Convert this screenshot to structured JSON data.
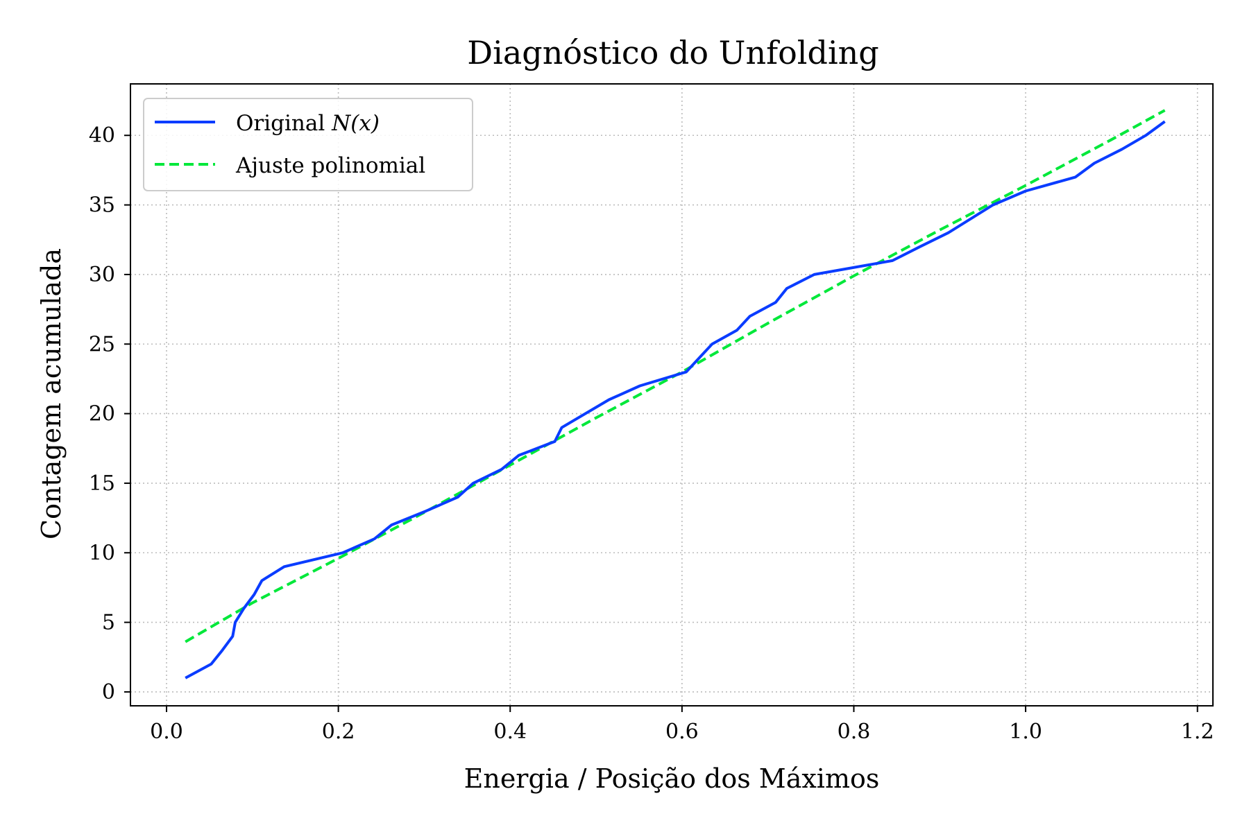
{
  "chart_data": {
    "type": "line",
    "title": "Diagnóstico do Unfolding",
    "xlabel": "Energia / Posição dos Máximos",
    "ylabel": "Contagem acumulada",
    "xlim": [
      -0.042,
      1.218
    ],
    "ylim": [
      -1.0,
      43.7
    ],
    "xticks": [
      "0.0",
      "0.2",
      "0.4",
      "0.6",
      "0.8",
      "1.0",
      "1.2"
    ],
    "xtick_values": [
      0.0,
      0.2,
      0.4,
      0.6,
      0.8,
      1.0,
      1.2
    ],
    "yticks": [
      "0",
      "5",
      "10",
      "15",
      "20",
      "25",
      "30",
      "35",
      "40"
    ],
    "ytick_values": [
      0,
      5,
      10,
      15,
      20,
      25,
      30,
      35,
      40
    ],
    "grid": true,
    "legend_position": "top-left",
    "series": [
      {
        "name": "Original N(x)",
        "name_main": "Original ",
        "name_math": "N(x)",
        "color": "#0a3cff",
        "style": "solid",
        "x": [
          0.022,
          0.052,
          0.065,
          0.077,
          0.08,
          0.09,
          0.102,
          0.111,
          0.137,
          0.205,
          0.242,
          0.262,
          0.302,
          0.339,
          0.357,
          0.39,
          0.41,
          0.452,
          0.46,
          0.515,
          0.551,
          0.605,
          0.635,
          0.664,
          0.679,
          0.709,
          0.722,
          0.754,
          0.845,
          0.877,
          0.91,
          0.962,
          1.0,
          1.058,
          1.08,
          1.112,
          1.14,
          1.162
        ],
        "y": [
          1,
          2,
          3,
          4,
          5,
          6,
          7,
          8,
          9,
          10,
          11,
          12,
          13,
          14,
          15,
          16,
          17,
          18,
          19,
          21,
          22,
          23,
          25,
          26,
          27,
          28,
          29,
          30,
          31,
          32,
          33,
          35,
          36,
          37,
          38,
          39,
          40,
          41
        ]
      },
      {
        "name": "Ajuste polinomial",
        "color": "#00e83a",
        "style": "dashed",
        "x": [
          0.022,
          0.1,
          0.2,
          0.3,
          0.4,
          0.5,
          0.6,
          0.7,
          0.8,
          0.9,
          1.0,
          1.1,
          1.162
        ],
        "y": [
          3.6,
          6.4,
          9.6,
          12.9,
          16.3,
          19.7,
          23.0,
          26.5,
          29.9,
          33.2,
          36.4,
          39.7,
          41.8
        ]
      }
    ]
  }
}
